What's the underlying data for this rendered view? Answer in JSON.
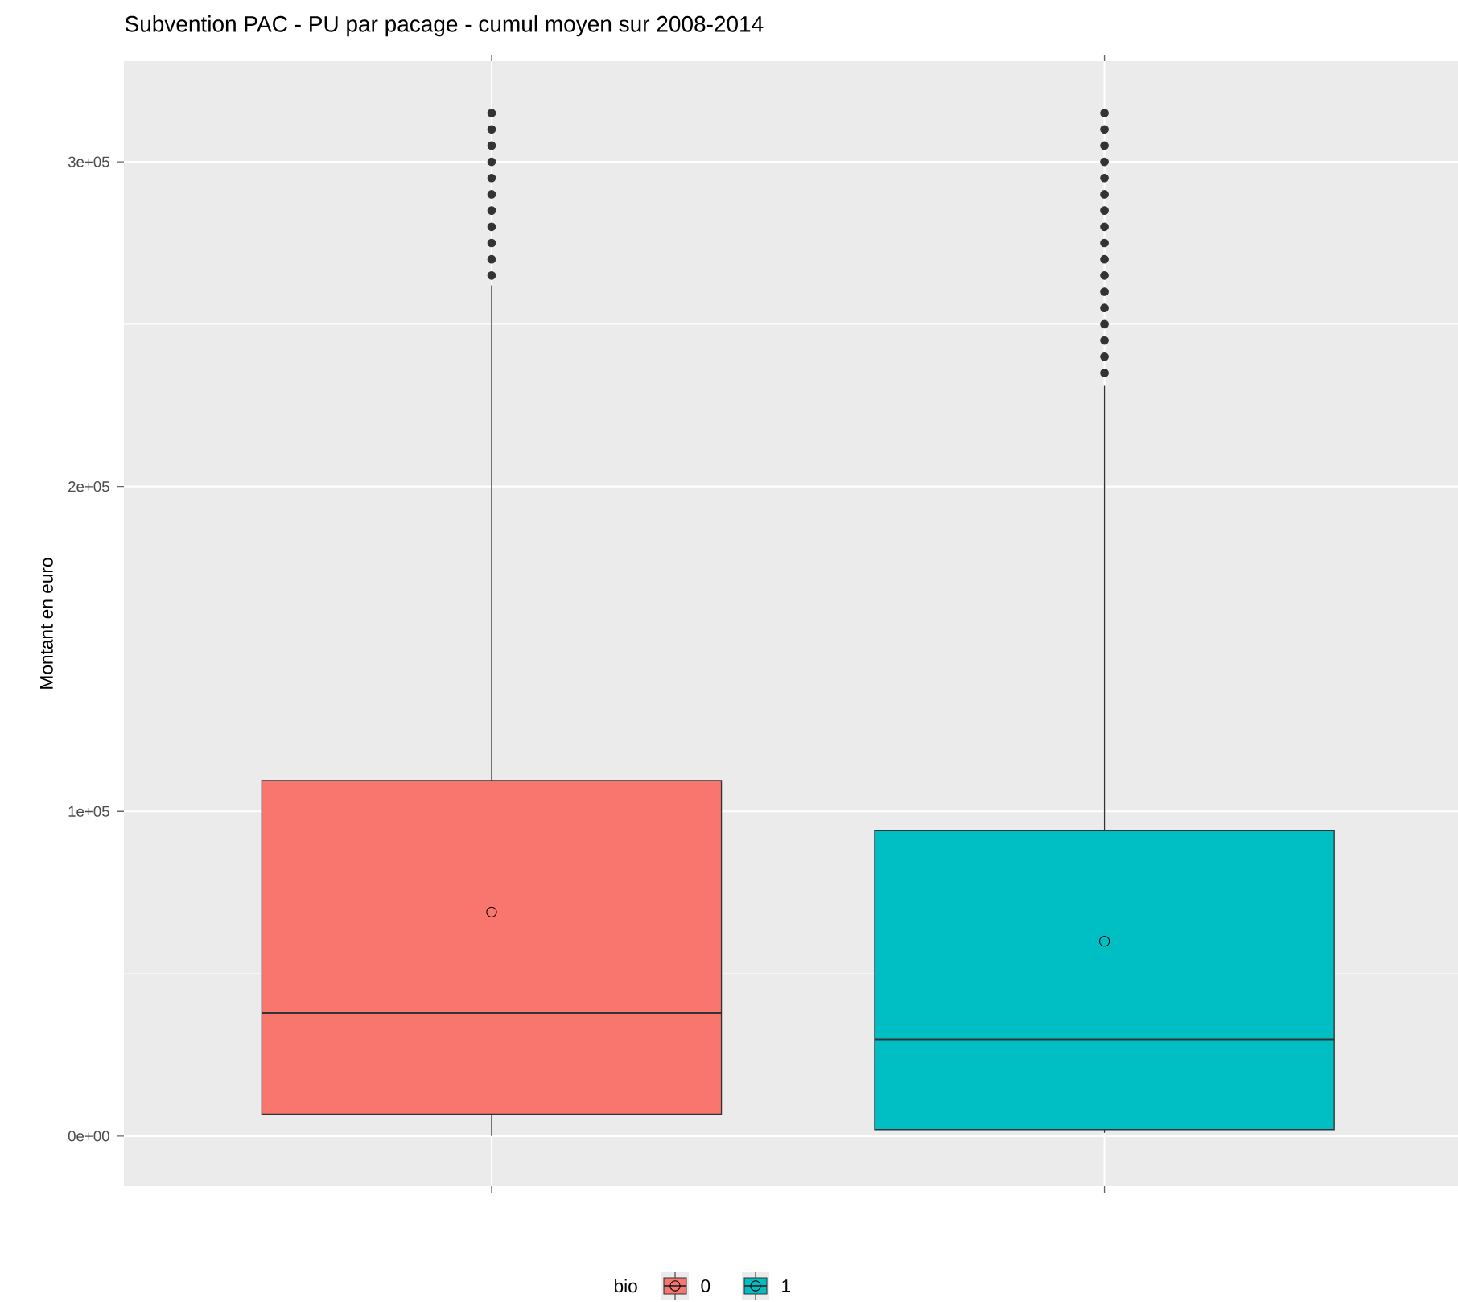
{
  "chart_data": {
    "type": "box",
    "title": "Subvention PAC - PU par pacage - cumul moyen sur 2008-2014",
    "ylabel": "Montant en euro",
    "legend_title": "bio",
    "categories": [
      null,
      null
    ],
    "series": [
      {
        "name": "0",
        "color": "#f8766d",
        "boxes": [
          {
            "low": 0,
            "q1": 6800,
            "median": 38000,
            "q3": 109500,
            "high": 262000,
            "mean": 69000,
            "outliers": [
              265000,
              270000,
              275000,
              280000,
              285000,
              290000,
              295000,
              300000,
              305000,
              310000,
              315000
            ]
          },
          null
        ]
      },
      {
        "name": "1",
        "color": "#00bfc4",
        "boxes": [
          null,
          {
            "low": 1000,
            "q1": 2000,
            "median": 29700,
            "q3": 94000,
            "high": 231000,
            "mean": 60000,
            "outliers": [
              235000,
              240000,
              245000,
              250000,
              255000,
              260000,
              265000,
              270000,
              275000,
              280000,
              285000,
              290000,
              295000,
              300000,
              305000,
              310000,
              315000
            ]
          }
        ]
      }
    ],
    "ylim": [
      -15400,
      331000
    ],
    "yticks": [
      {
        "value": 0,
        "label": "0e+00"
      },
      {
        "value": 100000,
        "label": "1e+05"
      },
      {
        "value": 200000,
        "label": "2e+05"
      },
      {
        "value": 300000,
        "label": "3e+05"
      }
    ],
    "grid": true,
    "legend": "bottom"
  }
}
